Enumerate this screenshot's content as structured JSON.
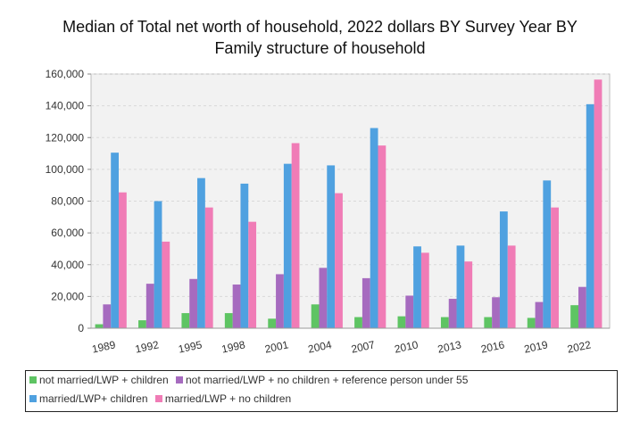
{
  "title_line1": "Median of Total net worth of household, 2022 dollars BY Survey Year BY",
  "title_line2": "Family structure of household",
  "chart_data": {
    "type": "bar",
    "title": "Median of Total net worth of household, 2022 dollars BY Survey Year BY Family structure of household",
    "categories": [
      "1989",
      "1992",
      "1995",
      "1998",
      "2001",
      "2004",
      "2007",
      "2010",
      "2013",
      "2016",
      "2019",
      "2022"
    ],
    "ylim": [
      0,
      160000
    ],
    "yticks": [
      "160,000",
      "140,000",
      "120,000",
      "100,000",
      "80,000",
      "60,000",
      "40,000",
      "20,000",
      "0"
    ],
    "grid": true,
    "legend_position": "bottom",
    "series": [
      {
        "name": "not married/LWP + children",
        "color": "#5ec463",
        "values": [
          2500,
          5000,
          9500,
          9500,
          6000,
          15000,
          7000,
          7500,
          7000,
          7000,
          6500,
          14500
        ]
      },
      {
        "name": "not married/LWP + no children + reference person under 55",
        "color": "#a66bbf",
        "values": [
          15000,
          28000,
          31000,
          27500,
          34000,
          38000,
          31500,
          20500,
          18500,
          19500,
          16500,
          26000
        ]
      },
      {
        "name": "married/LWP+ children",
        "color": "#4fa1e0",
        "values": [
          110500,
          80000,
          94500,
          91000,
          103500,
          102500,
          126000,
          51500,
          52000,
          73500,
          93000,
          141000
        ]
      },
      {
        "name": "married/LWP + no children",
        "color": "#f07cb6",
        "values": [
          85500,
          54500,
          76000,
          67000,
          116500,
          85000,
          115000,
          47500,
          42000,
          52000,
          76000,
          156500
        ]
      }
    ]
  }
}
